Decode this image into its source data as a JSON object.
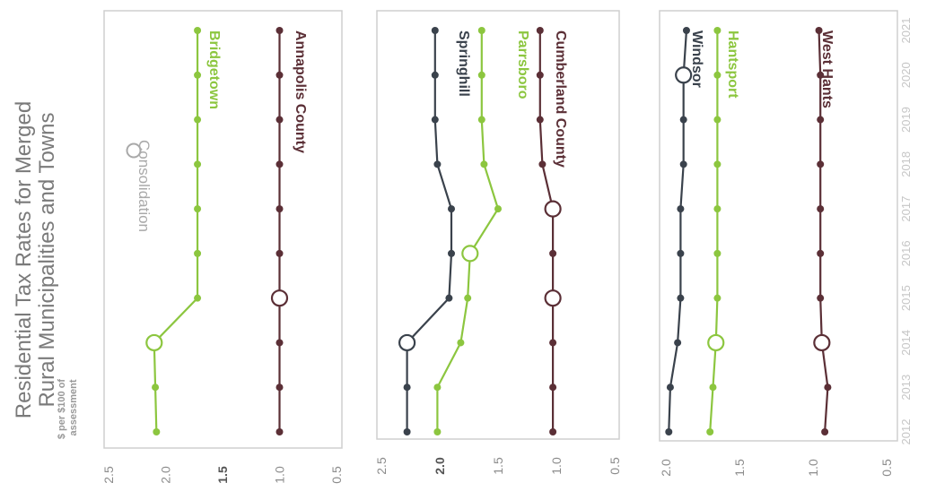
{
  "title": "Residential Tax Rates for Merged Rural Municipalities and Towns",
  "unit_label": "$ per $100 of assessment",
  "legend": {
    "consolidation_label": "Consolidation"
  },
  "colors": {
    "green": "#8cc63f",
    "maroon": "#5b2f36",
    "slate": "#3a424c",
    "frame": "#cfcfcf"
  },
  "chart_data": [
    {
      "type": "line",
      "years": [
        2012,
        2013,
        2014,
        2015,
        2016,
        2017,
        2018,
        2019,
        2020,
        2021
      ],
      "ylim": [
        0.5,
        2.5
      ],
      "yticks": [
        "0.5",
        "1.0",
        "1.5",
        "2.0",
        "2.5"
      ],
      "bold_tick": "1.5",
      "series": [
        {
          "name": "Bridgetown",
          "color": "#8cc63f",
          "consolidation_year": 2014,
          "values": [
            2.08,
            2.09,
            2.1,
            1.72,
            1.72,
            1.72,
            1.72,
            1.72,
            1.72,
            1.72
          ]
        },
        {
          "name": "Annapolis County",
          "color": "#5b2f36",
          "consolidation_year": 2015,
          "values": [
            1.0,
            1.0,
            1.0,
            1.0,
            1.0,
            1.0,
            1.0,
            1.0,
            1.0,
            1.0
          ]
        }
      ]
    },
    {
      "type": "line",
      "years": [
        2012,
        2013,
        2014,
        2015,
        2016,
        2017,
        2018,
        2019,
        2020,
        2021
      ],
      "ylim": [
        0.5,
        2.5
      ],
      "yticks": [
        "0.5",
        "1.0",
        "1.5",
        "2.0",
        "2.5"
      ],
      "bold_tick": "2.0",
      "series": [
        {
          "name": "Springhill",
          "color": "#3a424c",
          "consolidation_year": 2014,
          "values": [
            2.28,
            2.28,
            2.28,
            1.92,
            1.9,
            1.9,
            2.02,
            2.04,
            2.04,
            2.04
          ]
        },
        {
          "name": "Parrsboro",
          "color": "#8cc63f",
          "consolidation_year": 2016,
          "values": [
            2.02,
            2.02,
            1.82,
            1.76,
            1.74,
            1.5,
            1.62,
            1.64,
            1.64,
            1.64
          ]
        },
        {
          "name": "Cumberland County",
          "color": "#5b2f36",
          "consolidation_year": 2015,
          "values": [
            1.03,
            1.03,
            1.03,
            1.03,
            1.03,
            1.03,
            1.12,
            1.14,
            1.14,
            1.14
          ]
        }
      ],
      "extra_markers": [
        {
          "series": "Cumberland County",
          "year": 2017
        }
      ]
    },
    {
      "type": "line",
      "years": [
        2012,
        2013,
        2014,
        2015,
        2016,
        2017,
        2018,
        2019,
        2020,
        2021
      ],
      "ylim": [
        0.5,
        2.0
      ],
      "yticks": [
        "0.5",
        "1.0",
        "1.5",
        "2.0"
      ],
      "bold_tick": "",
      "xticks": [
        "2012",
        "2013",
        "2014",
        "2015",
        "2016",
        "2017",
        "2018",
        "2019",
        "2020",
        "2021"
      ],
      "series": [
        {
          "name": "Windsor",
          "color": "#3a424c",
          "consolidation_year": 2020,
          "values": [
            1.98,
            1.97,
            1.92,
            1.9,
            1.9,
            1.9,
            1.88,
            1.88,
            1.88,
            1.86
          ]
        },
        {
          "name": "Hantsport",
          "color": "#8cc63f",
          "consolidation_year": 2014,
          "values": [
            1.7,
            1.68,
            1.66,
            1.65,
            1.65,
            1.65,
            1.65,
            1.65,
            1.65,
            1.65
          ]
        },
        {
          "name": "West Hants",
          "color": "#5b2f36",
          "consolidation_year": 2014,
          "values": [
            0.92,
            0.9,
            0.94,
            0.95,
            0.95,
            0.95,
            0.95,
            0.95,
            0.95,
            0.96
          ]
        }
      ]
    }
  ]
}
